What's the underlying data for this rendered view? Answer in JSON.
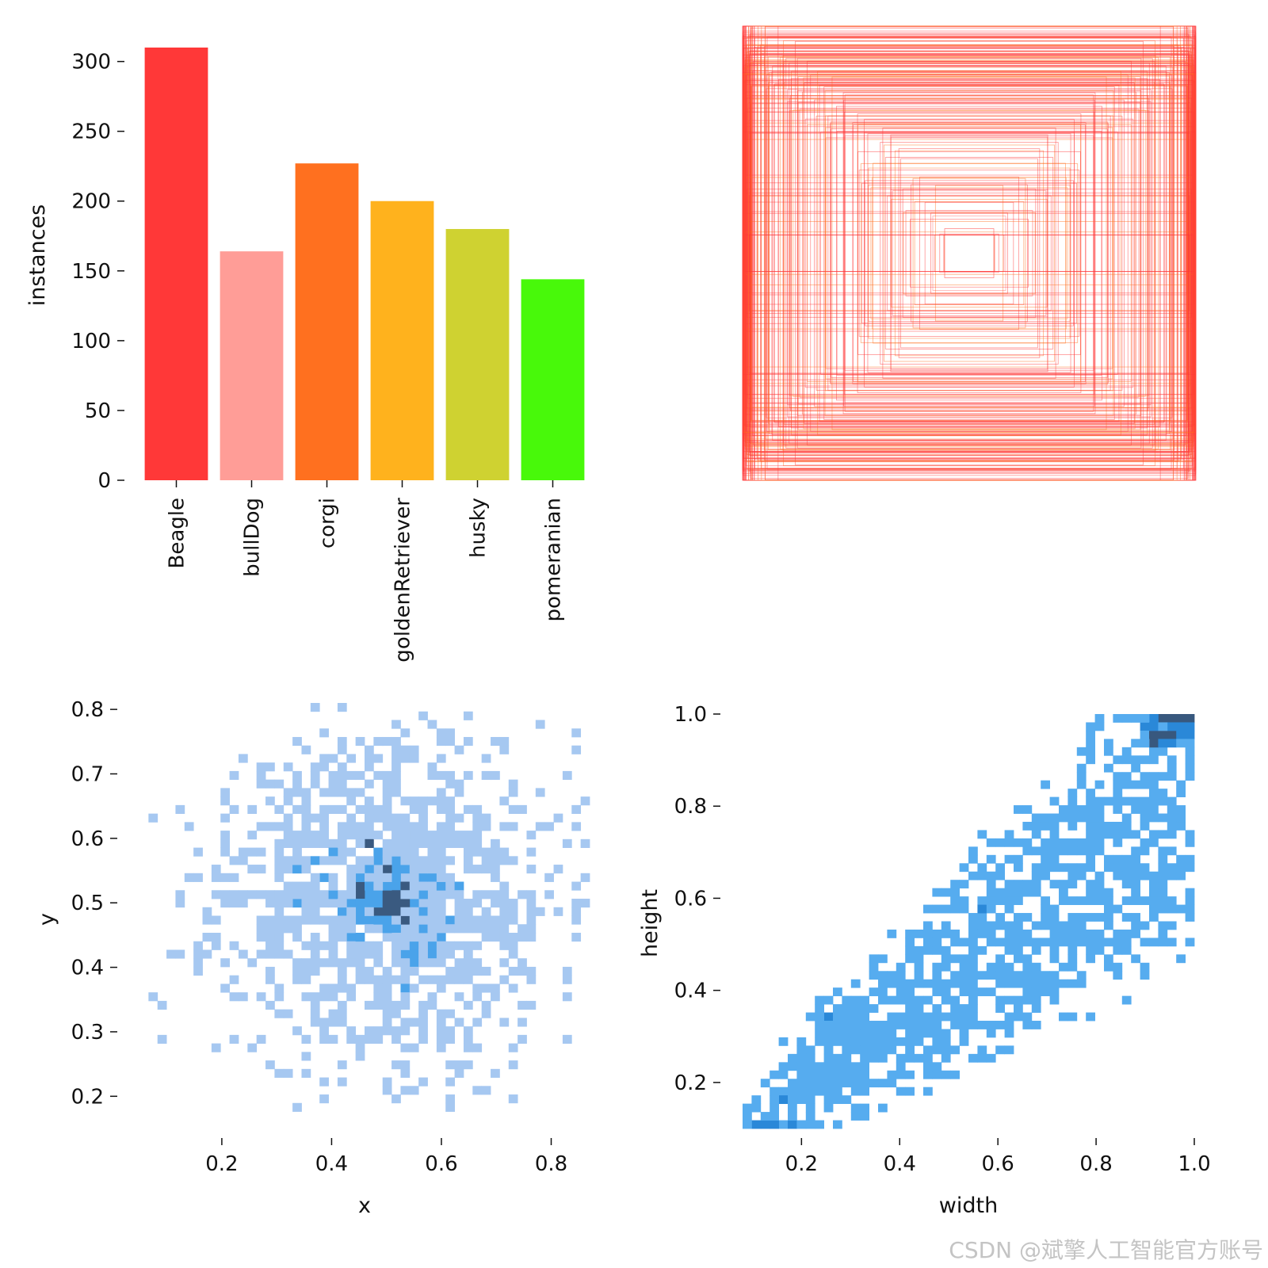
{
  "watermark": "CSDN @斌擎人工智能官方账号",
  "chart_data": [
    {
      "type": "bar",
      "panel": "instances",
      "categories": [
        "Beagle",
        "bullDog",
        "corgi",
        "goldenRetriever",
        "husky",
        "pomeranian"
      ],
      "values": [
        310,
        164,
        227,
        200,
        180,
        144
      ],
      "colors": [
        "#ff3838",
        "#ff9d97",
        "#ff701f",
        "#ffb21d",
        "#cfd231",
        "#48f90a"
      ],
      "xlabel": "",
      "ylabel": "instances",
      "ylim": [
        0,
        310
      ],
      "yticks": [
        0,
        50,
        100,
        150,
        200,
        250,
        300
      ]
    },
    {
      "type": "other",
      "panel": "boxes",
      "description_free": true,
      "n_boxes": 240,
      "colors": [
        "#ff3838",
        "#ff701f"
      ]
    },
    {
      "type": "heatmap",
      "panel": "xy",
      "xlabel": "x",
      "ylabel": "y",
      "xlim": [
        0.05,
        0.87
      ],
      "ylim": [
        0.15,
        0.81
      ],
      "xticks": [
        0.2,
        0.4,
        0.6,
        0.8
      ],
      "yticks": [
        0.2,
        0.3,
        0.4,
        0.5,
        0.6,
        0.7,
        0.8
      ],
      "center": [
        0.5,
        0.51
      ],
      "spread": [
        0.15,
        0.13
      ],
      "bins": 50,
      "color_light": "#a6c8f1",
      "color_mid": "#4aa3ea",
      "color_dark": "#3a5a80"
    },
    {
      "type": "heatmap",
      "panel": "wh",
      "xlabel": "width",
      "ylabel": "height",
      "xlim": [
        0.08,
        1.0
      ],
      "ylim": [
        0.1,
        1.0
      ],
      "xticks": [
        0.2,
        0.4,
        0.6,
        0.8,
        1.0
      ],
      "yticks": [
        0.2,
        0.4,
        0.6,
        0.8,
        1.0
      ],
      "tick_labels_x": [
        "0.2",
        "0.4",
        "0.6",
        "0.8",
        "1.0"
      ],
      "tick_labels_y": [
        "0.2",
        "0.4",
        "0.6",
        "0.8",
        "1.0"
      ],
      "bins": 50,
      "color_light": "#56acef",
      "color_mid": "#2a88d8",
      "color_dark": "#38587e"
    }
  ]
}
